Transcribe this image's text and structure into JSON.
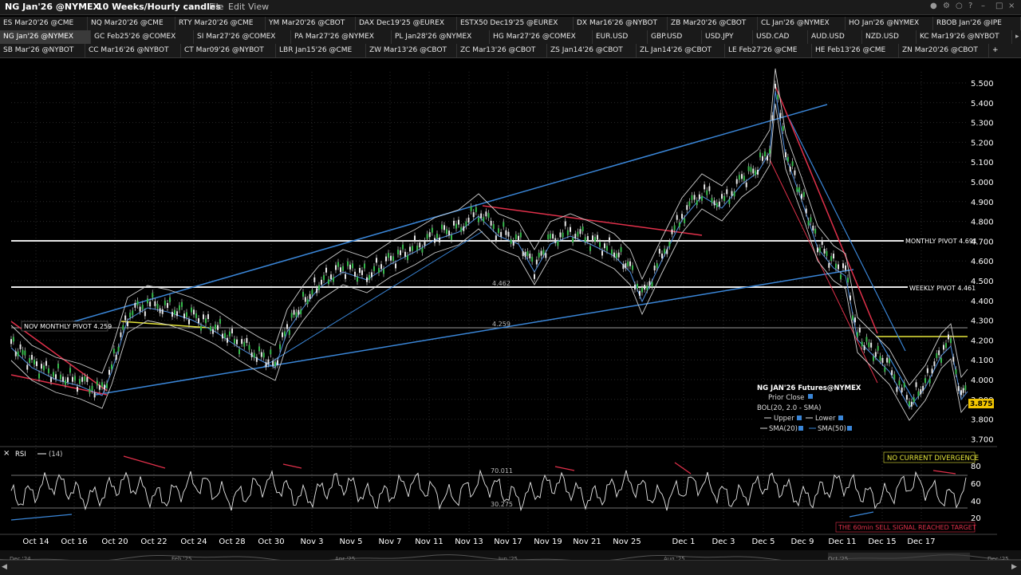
{
  "title_bar": {
    "symbol": "NG Jan'26 @NYMEX",
    "timeframe": "10 Weeks/Hourly candles",
    "menu": [
      "File",
      "Edit",
      "View"
    ]
  },
  "tab_rows": [
    [
      "ES Mar20'26 @CME",
      "NQ Mar20'26 @CME",
      "RTY Mar20'26 @CME",
      "YM Mar20'26 @CBOT",
      "DAX Dec19'25 @EUREX",
      "ESTX50 Dec19'25 @EUREX",
      "DX Mar16'26 @NYBOT",
      "ZB Mar20'26 @CBOT",
      "CL Jan'26 @NYMEX",
      "HO Jan'26 @NYMEX",
      "RBOB Jan'26 @IPE"
    ],
    [
      "NG Jan'26 @NYMEX",
      "GC Feb25'26 @COMEX",
      "SI Mar27'26 @COMEX",
      "PA Mar27'26 @NYMEX",
      "PL Jan28'26 @NYMEX",
      "HG Mar27'26 @COMEX",
      "EUR.USD",
      "GBP.USD",
      "USD.JPY",
      "USD.CAD",
      "AUD.USD",
      "NZD.USD",
      "KC Mar19'26 @NYBOT"
    ],
    [
      "SB Mar'26 @NYBOT",
      "CC Mar16'26 @NYBOT",
      "CT Mar09'26 @NYBOT",
      "LBR Jan15'26 @CME",
      "ZW Mar13'26 @CBOT",
      "ZC Mar13'26 @CBOT",
      "ZS Jan14'26 @CBOT",
      "ZL Jan14'26 @CBOT",
      "LE Feb27'26 @CME",
      "HE Feb13'26 @CME",
      "ZN Mar20'26 @CBOT"
    ]
  ],
  "price_axis": [
    "5.500",
    "5.400",
    "5.300",
    "5.200",
    "5.100",
    "5.000",
    "4.900",
    "4.800",
    "4.700",
    "4.600",
    "4.500",
    "4.400",
    "4.300",
    "4.200",
    "4.100",
    "4.000",
    "3.900",
    "3.800",
    "3.700"
  ],
  "current_price": "3.875",
  "level_labels": {
    "monthly": "MONTHLY PIVOT 4.691",
    "weekly": "WEEKLY PIVOT 4.461",
    "nov_monthly": "NOV MONTHLY PIVOT 4.259",
    "mid_1": "4.462",
    "mid_2": "4.259"
  },
  "legend": {
    "title": "NG JAN'26 Futures@NYMEX",
    "prior_close": "Prior Close",
    "bol": "BOL(20, 2.0 - SMA)",
    "upper": "Upper",
    "lower": "Lower",
    "sma20": "SMA(20)",
    "sma50": "SMA(50)"
  },
  "rsi": {
    "label": "RSI",
    "period": "(14)",
    "axis": [
      "80",
      "60",
      "40",
      "20"
    ],
    "level_hi": "70.011",
    "level_lo": "30.275",
    "divergence": "NO CURRENT DIVERGENCE",
    "signal": "THE 60min SELL SIGNAL REACHED TARGET"
  },
  "x_dates": [
    "Oct 14",
    "Oct 16",
    "Oct 20",
    "Oct 22",
    "Oct 24",
    "Oct 28",
    "Oct 30",
    "Nov 3",
    "Nov 5",
    "Nov 7",
    "Nov 11",
    "Nov 13",
    "Nov 17",
    "Nov 19",
    "Nov 21",
    "Nov 25",
    "Dec 1",
    "Dec 3",
    "Dec 5",
    "Dec 9",
    "Dec 11",
    "Dec 15",
    "Dec 17"
  ],
  "overview_dates": [
    "Dec '24",
    "Feb '25",
    "Apr '25",
    "Jun '25",
    "Aug '25",
    "Oct '25",
    "Dec '25"
  ],
  "colors": {
    "bg": "#000000",
    "trend_blue": "#3a86d8",
    "trend_red": "#e0304a",
    "pivot_white": "#e8e8e8",
    "yellow": "#e5e53a",
    "price_tag": "#f2c500"
  }
}
